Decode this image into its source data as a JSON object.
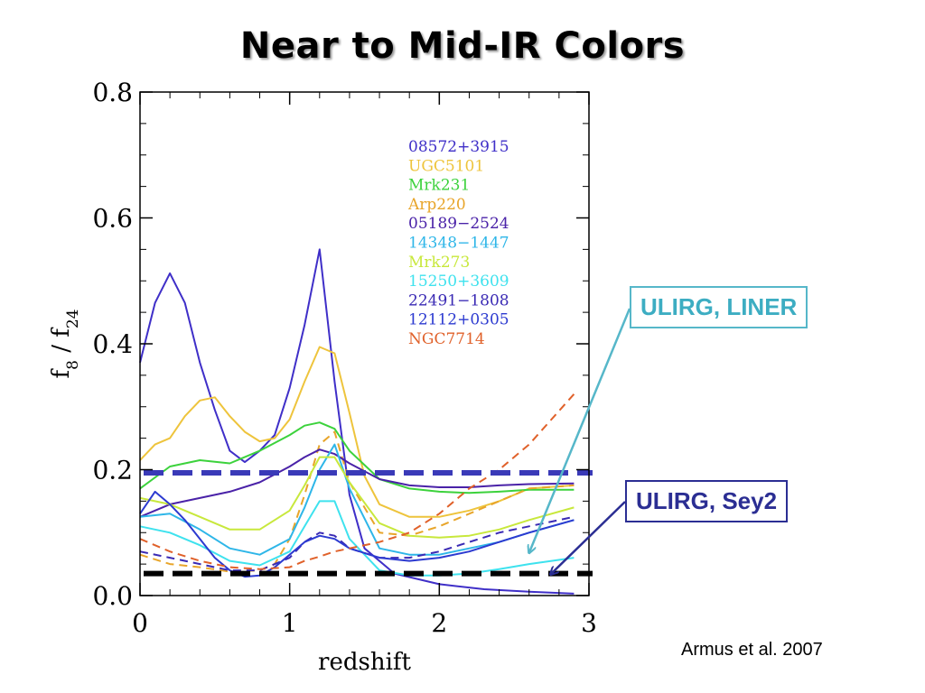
{
  "slide": {
    "title": "Near to Mid-IR Colors",
    "citation": "Armus et al. 2007"
  },
  "callouts": [
    {
      "text": "ULIRG, LINER",
      "color": "#3dadc2"
    },
    {
      "text": "ULIRG, Sey2",
      "color": "#2b2e93"
    }
  ],
  "chart_data": {
    "type": "line",
    "xlabel": "redshift",
    "ylabel_base": "f",
    "ylabel_sub1": "8",
    "ylabel_sep": " / f",
    "ylabel_sub2": "24",
    "xlim": [
      0,
      3
    ],
    "ylim": [
      0,
      0.8
    ],
    "xticks": [
      "0",
      "1",
      "2",
      "3"
    ],
    "yticks": [
      "0.0",
      "0.2",
      "0.4",
      "0.6",
      "0.8"
    ],
    "grid": false,
    "legend_position": "top-right",
    "series": [
      {
        "name": "08572+3915",
        "color": "#3f2fc8",
        "dash": false,
        "x": [
          0,
          0.1,
          0.2,
          0.3,
          0.4,
          0.5,
          0.6,
          0.7,
          0.8,
          0.9,
          1.0,
          1.1,
          1.2,
          1.3,
          1.4,
          1.5,
          1.7,
          2.0,
          2.3,
          2.6,
          2.9
        ],
        "y": [
          0.37,
          0.465,
          0.512,
          0.465,
          0.37,
          0.295,
          0.23,
          0.212,
          0.23,
          0.255,
          0.33,
          0.43,
          0.55,
          0.34,
          0.16,
          0.075,
          0.035,
          0.018,
          0.01,
          0.006,
          0.003
        ]
      },
      {
        "name": "UGC5101",
        "color": "#eec43c",
        "dash": false,
        "x": [
          0,
          0.1,
          0.2,
          0.3,
          0.4,
          0.5,
          0.6,
          0.7,
          0.8,
          0.9,
          1.0,
          1.1,
          1.2,
          1.3,
          1.4,
          1.5,
          1.6,
          1.8,
          2.0,
          2.2,
          2.4,
          2.6,
          2.9
        ],
        "y": [
          0.215,
          0.24,
          0.25,
          0.285,
          0.31,
          0.315,
          0.285,
          0.26,
          0.245,
          0.25,
          0.28,
          0.34,
          0.395,
          0.385,
          0.29,
          0.19,
          0.145,
          0.125,
          0.125,
          0.135,
          0.15,
          0.17,
          0.175
        ]
      },
      {
        "name": "Mrk231",
        "color": "#3cd23c",
        "dash": false,
        "x": [
          0,
          0.2,
          0.4,
          0.6,
          0.8,
          1.0,
          1.1,
          1.2,
          1.3,
          1.4,
          1.6,
          1.8,
          2.0,
          2.2,
          2.4,
          2.6,
          2.9
        ],
        "y": [
          0.17,
          0.205,
          0.215,
          0.21,
          0.23,
          0.255,
          0.27,
          0.275,
          0.265,
          0.23,
          0.185,
          0.17,
          0.165,
          0.163,
          0.165,
          0.168,
          0.168
        ]
      },
      {
        "name": "Arp220",
        "color": "#e8a52a",
        "dash": true,
        "x": [
          0,
          0.2,
          0.4,
          0.6,
          0.8,
          0.9,
          1.0,
          1.1,
          1.2,
          1.3,
          1.4,
          1.6,
          1.8,
          2.0,
          2.2,
          2.4,
          2.6,
          2.9
        ],
        "y": [
          0.065,
          0.05,
          0.045,
          0.038,
          0.04,
          0.05,
          0.09,
          0.16,
          0.24,
          0.26,
          0.18,
          0.1,
          0.095,
          0.11,
          0.13,
          0.15,
          0.17,
          0.175
        ]
      },
      {
        "name": "05189−2524",
        "color": "#4a22a8",
        "dash": false,
        "x": [
          0,
          0.2,
          0.4,
          0.6,
          0.8,
          1.0,
          1.1,
          1.2,
          1.3,
          1.4,
          1.6,
          1.8,
          2.0,
          2.2,
          2.4,
          2.6,
          2.9
        ],
        "y": [
          0.125,
          0.145,
          0.155,
          0.165,
          0.18,
          0.205,
          0.22,
          0.232,
          0.225,
          0.21,
          0.185,
          0.175,
          0.172,
          0.172,
          0.175,
          0.177,
          0.178
        ]
      },
      {
        "name": "14348−1447",
        "color": "#2eb6e8",
        "dash": false,
        "x": [
          0,
          0.2,
          0.4,
          0.6,
          0.8,
          1.0,
          1.1,
          1.2,
          1.3,
          1.4,
          1.6,
          1.8,
          2.0,
          2.2,
          2.4,
          2.6,
          2.9
        ],
        "y": [
          0.125,
          0.13,
          0.105,
          0.075,
          0.065,
          0.09,
          0.14,
          0.2,
          0.24,
          0.17,
          0.075,
          0.065,
          0.065,
          0.075,
          0.085,
          0.1,
          0.12
        ]
      },
      {
        "name": "Mrk273",
        "color": "#c8e83c",
        "dash": false,
        "x": [
          0,
          0.2,
          0.4,
          0.6,
          0.8,
          1.0,
          1.1,
          1.2,
          1.3,
          1.4,
          1.6,
          1.8,
          2.0,
          2.2,
          2.4,
          2.6,
          2.9
        ],
        "y": [
          0.155,
          0.145,
          0.125,
          0.105,
          0.105,
          0.135,
          0.175,
          0.22,
          0.22,
          0.18,
          0.115,
          0.095,
          0.092,
          0.095,
          0.105,
          0.12,
          0.14
        ]
      },
      {
        "name": "15250+3609",
        "color": "#3ee2ee",
        "dash": false,
        "x": [
          0,
          0.2,
          0.4,
          0.6,
          0.8,
          1.0,
          1.1,
          1.2,
          1.3,
          1.4,
          1.6,
          1.8,
          2.0,
          2.2,
          2.4,
          2.6,
          2.9
        ],
        "y": [
          0.11,
          0.1,
          0.08,
          0.055,
          0.048,
          0.07,
          0.11,
          0.15,
          0.15,
          0.09,
          0.04,
          0.032,
          0.032,
          0.035,
          0.042,
          0.05,
          0.06
        ]
      },
      {
        "name": "22491−1808",
        "color": "#3a2ab4",
        "dash": true,
        "x": [
          0,
          0.2,
          0.4,
          0.6,
          0.8,
          1.0,
          1.1,
          1.2,
          1.3,
          1.4,
          1.6,
          1.8,
          2.0,
          2.2,
          2.4,
          2.6,
          2.9
        ],
        "y": [
          0.07,
          0.06,
          0.05,
          0.04,
          0.04,
          0.06,
          0.085,
          0.1,
          0.095,
          0.075,
          0.06,
          0.06,
          0.07,
          0.085,
          0.1,
          0.11,
          0.125
        ]
      },
      {
        "name": "12112+0305",
        "color": "#2c3ad0",
        "dash": false,
        "x": [
          0,
          0.1,
          0.2,
          0.3,
          0.4,
          0.5,
          0.6,
          0.7,
          0.8,
          0.9,
          1.0,
          1.1,
          1.2,
          1.3,
          1.4,
          1.6,
          1.8,
          2.0,
          2.2,
          2.4,
          2.6,
          2.9
        ],
        "y": [
          0.13,
          0.165,
          0.145,
          0.12,
          0.09,
          0.06,
          0.04,
          0.03,
          0.032,
          0.045,
          0.065,
          0.085,
          0.095,
          0.09,
          0.075,
          0.06,
          0.055,
          0.06,
          0.07,
          0.085,
          0.1,
          0.12
        ]
      },
      {
        "name": "NGC7714",
        "color": "#e0612a",
        "dash": true,
        "x": [
          0,
          0.2,
          0.4,
          0.6,
          0.8,
          1.0,
          1.1,
          1.2,
          1.3,
          1.4,
          1.6,
          1.8,
          2.0,
          2.2,
          2.4,
          2.6,
          2.9
        ],
        "y": [
          0.09,
          0.07,
          0.055,
          0.045,
          0.042,
          0.045,
          0.055,
          0.062,
          0.07,
          0.075,
          0.085,
          0.1,
          0.13,
          0.17,
          0.2,
          0.24,
          0.32
        ]
      }
    ],
    "reference_lines": [
      {
        "y": 0.195,
        "color": "#3a3ab8"
      },
      {
        "y": 0.035,
        "color": "#000000"
      }
    ]
  }
}
